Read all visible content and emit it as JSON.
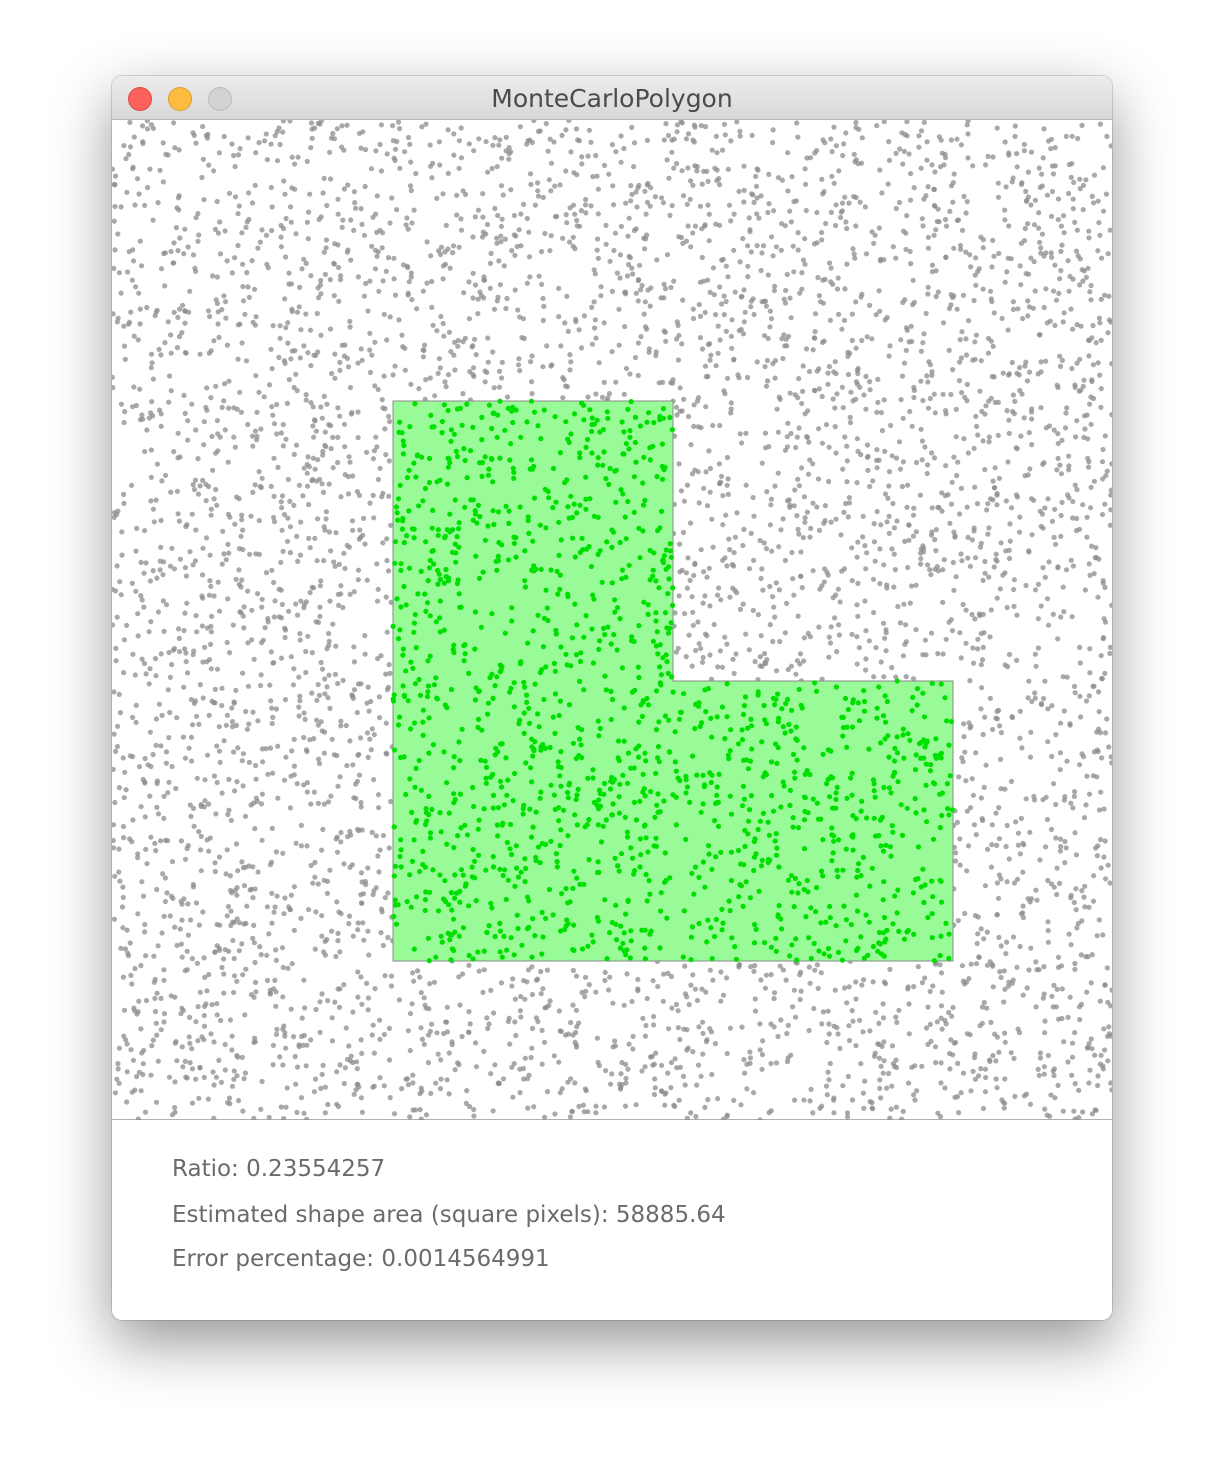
{
  "window": {
    "title": "MonteCarloPolygon"
  },
  "simulation": {
    "shape": "L-shaped polygon",
    "point_count": 6000,
    "colors": {
      "shape_fill": "#98fb98",
      "shape_stroke": "#8a8a8a",
      "inside_point": "#00e000",
      "outside_point": "#8c8c8c"
    }
  },
  "stats": {
    "ratio": "Ratio: 0.23554257",
    "area": "Estimated shape area (square pixels): 58885.64",
    "error": "Error percentage: 0.0014564991"
  }
}
